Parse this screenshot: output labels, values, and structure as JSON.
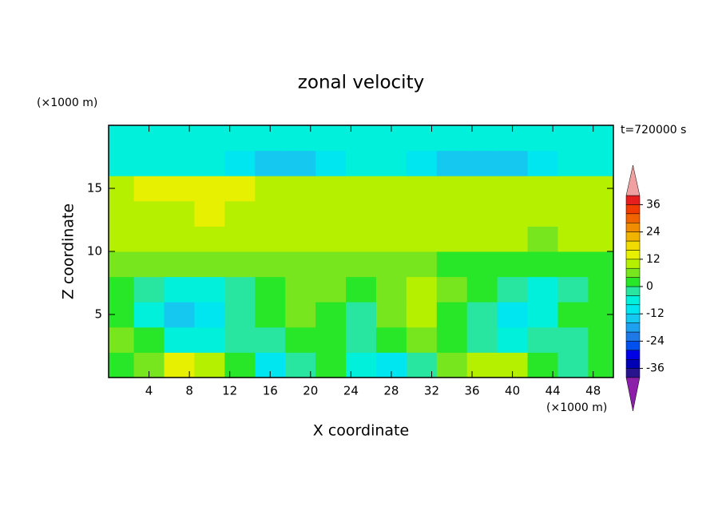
{
  "chart_data": {
    "type": "contour",
    "title": "zonal velocity",
    "x_label": "X coordinate",
    "y_label": "Z coordinate",
    "x_unit": "(×1000 m)",
    "y_unit": "(×1000 m)",
    "annotation": "t=720000 s",
    "xlim": [
      0,
      50
    ],
    "ylim": [
      0,
      20
    ],
    "xticks": [
      4,
      8,
      12,
      16,
      20,
      24,
      28,
      32,
      36,
      40,
      44,
      48
    ],
    "yticks": [
      5,
      10,
      15
    ],
    "x": [
      1,
      4,
      7,
      10,
      13,
      16,
      19,
      22,
      25,
      28,
      31,
      34,
      37,
      40,
      43,
      46,
      49
    ],
    "z": [
      1,
      3,
      5,
      7,
      9,
      11,
      13,
      15,
      17,
      19
    ],
    "u": [
      [
        2,
        6,
        13,
        10,
        2,
        -10,
        -2,
        2,
        -6,
        -10,
        -2,
        6,
        10,
        10,
        2,
        -2,
        2
      ],
      [
        6,
        2,
        -6,
        -6,
        -2,
        -2,
        2,
        2,
        -2,
        2,
        6,
        2,
        -2,
        -6,
        -2,
        -2,
        2
      ],
      [
        2,
        -6,
        -14,
        -10,
        -2,
        2,
        6,
        2,
        -2,
        6,
        10,
        2,
        -2,
        -10,
        -6,
        2,
        2
      ],
      [
        2,
        -2,
        -6,
        -6,
        -2,
        2,
        6,
        6,
        2,
        6,
        10,
        6,
        2,
        -2,
        -6,
        -2,
        2
      ],
      [
        6,
        6,
        6,
        6,
        6,
        6,
        6,
        6,
        6,
        6,
        6,
        2,
        2,
        2,
        2,
        2,
        2
      ],
      [
        10,
        10,
        10,
        10,
        10,
        10,
        10,
        10,
        10,
        10,
        10,
        10,
        10,
        10,
        6,
        10,
        10
      ],
      [
        10,
        10,
        10,
        13,
        10,
        10,
        10,
        10,
        10,
        10,
        10,
        10,
        10,
        10,
        10,
        10,
        10
      ],
      [
        10,
        13,
        13,
        13,
        13,
        10,
        10,
        10,
        10,
        10,
        10,
        10,
        10,
        10,
        10,
        10,
        10
      ],
      [
        -6,
        -6,
        -6,
        -6,
        -10,
        -14,
        -14,
        -10,
        -6,
        -6,
        -10,
        -14,
        -14,
        -14,
        -10,
        -6,
        -6
      ],
      [
        -6,
        -6,
        -6,
        -6,
        -6,
        -8,
        -8,
        -8,
        -6,
        -6,
        -6,
        -6,
        -6,
        -6,
        -6,
        -6,
        -6
      ]
    ],
    "levels": [
      -40,
      -36,
      -32,
      -28,
      -24,
      -20,
      -16,
      -12,
      -8,
      -4,
      0,
      4,
      8,
      12,
      16,
      20,
      24,
      28,
      32,
      36,
      40
    ],
    "colors": [
      "#8c1eaa",
      "#28148c",
      "#0000b4",
      "#0000e6",
      "#0050f0",
      "#1e78e6",
      "#1ea0f0",
      "#14c8f0",
      "#00e6f0",
      "#00f0dc",
      "#28e6a0",
      "#28e628",
      "#78e61e",
      "#b4f000",
      "#e6f000",
      "#f0dc00",
      "#f0b400",
      "#f08c00",
      "#f06400",
      "#f03c00",
      "#e61e1e",
      "#f0a0a0"
    ],
    "colorbar_ticks": [
      -36,
      -24,
      -12,
      0,
      12,
      24,
      36
    ]
  }
}
